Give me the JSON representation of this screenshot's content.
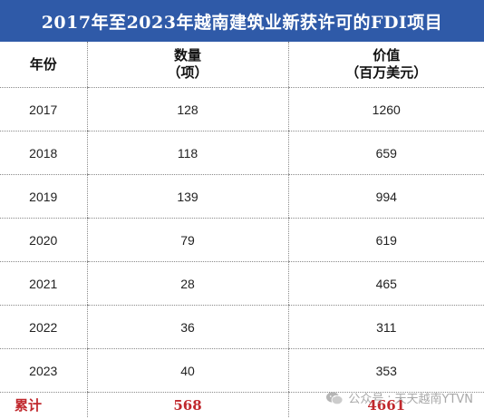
{
  "title": "2017年至2023年越南建筑业新获许可的FDI项目",
  "table": {
    "headers": {
      "year": "年份",
      "count": "数量",
      "count_unit": "（项）",
      "value": "价值",
      "value_unit": "（百万美元）"
    },
    "rows": [
      {
        "year": "2017",
        "count": "128",
        "value": "1260"
      },
      {
        "year": "2018",
        "count": "118",
        "value": "659"
      },
      {
        "year": "2019",
        "count": "139",
        "value": "994"
      },
      {
        "year": "2020",
        "count": "79",
        "value": "619"
      },
      {
        "year": "2021",
        "count": "28",
        "value": "465"
      },
      {
        "year": "2022",
        "count": "36",
        "value": "311"
      },
      {
        "year": "2023",
        "count": "40",
        "value": "353"
      }
    ],
    "total": {
      "label": "累计",
      "count": "568",
      "value": "4661"
    }
  },
  "watermark": {
    "icon": "wechat-icon",
    "prefix": "公众号",
    "name": "天天越南YTVN"
  },
  "colors": {
    "title_bg": "#2f5aa8",
    "total_text": "#c0282d"
  }
}
